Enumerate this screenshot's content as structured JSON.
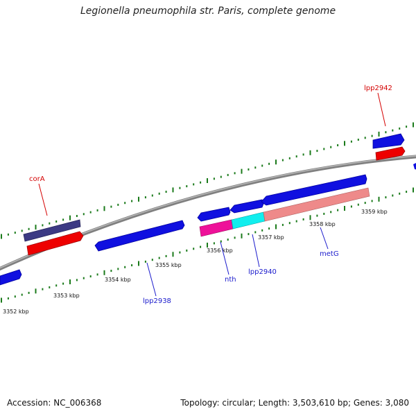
{
  "title": "Legionella pneumophila str. Paris, complete genome",
  "footer": {
    "accession": "Accession: NC_006368",
    "summary": "Topology: circular; Length: 3,503,610 bp; Genes: 3,080"
  },
  "ticks": [
    {
      "label": "3352 kbp"
    },
    {
      "label": "3353 kbp"
    },
    {
      "label": "3354 kbp"
    },
    {
      "label": "3355 kbp"
    },
    {
      "label": "3356 kbp"
    },
    {
      "label": "3357 kbp"
    },
    {
      "label": "3358 kbp"
    },
    {
      "label": "3359 kbp"
    }
  ],
  "gene_labels": [
    {
      "text": "corA",
      "color": "#d40000"
    },
    {
      "text": "lpp2942",
      "color": "#d40000"
    },
    {
      "text": "lpp2938",
      "color": "#1a1acc"
    },
    {
      "text": "nth",
      "color": "#1a1acc"
    },
    {
      "text": "lpp2940",
      "color": "#1a1acc"
    },
    {
      "text": "metG",
      "color": "#1a1acc"
    }
  ],
  "colors": {
    "forward_cds": "#1010e0",
    "reverse_cds": "#ee0000",
    "dark_gene": "#3c3a84",
    "backbone": "#888888",
    "tick": "#1a7a1a",
    "magenta": "#ee1199",
    "cyan": "#11eeee",
    "salmon": "#ee8a8a"
  }
}
